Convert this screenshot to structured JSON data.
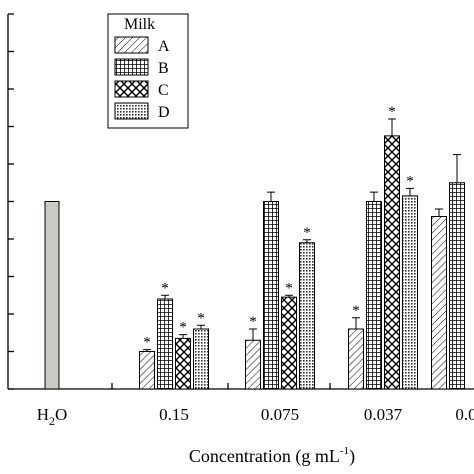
{
  "chart_data": {
    "type": "bar",
    "xlabel": "Concentration (g mL",
    "xlabel_sup": "-1",
    "xlabel_close": ")",
    "categories": [
      {
        "main": "H",
        "sub": "2",
        "rest": "O"
      },
      {
        "main": "0.15",
        "sub": "",
        "rest": ""
      },
      {
        "main": "0.075",
        "sub": "",
        "rest": ""
      },
      {
        "main": "0.037",
        "sub": "",
        "rest": ""
      },
      {
        "main": "0.0",
        "sub": "",
        "rest": ""
      }
    ],
    "ylim": [
      0,
      10
    ],
    "y_ticks": [
      0,
      1,
      2,
      3,
      4,
      5,
      6,
      7,
      8,
      9,
      10
    ],
    "legend": {
      "title": "Milk",
      "placement": "top-left"
    },
    "control": {
      "name": "",
      "value": 5.0,
      "error": 0,
      "color": "#c8cbc6"
    },
    "series": [
      {
        "name": "A",
        "pattern": "diagonal",
        "values": [
          null,
          1.0,
          1.3,
          1.6,
          4.6
        ],
        "errors": [
          0,
          0.05,
          0.3,
          0.3,
          0.2
        ],
        "significant": [
          false,
          true,
          true,
          true,
          false
        ]
      },
      {
        "name": "B",
        "pattern": "grid",
        "values": [
          null,
          2.4,
          5.0,
          5.0,
          5.5
        ],
        "errors": [
          0,
          0.1,
          0.25,
          0.25,
          0.75
        ],
        "significant": [
          false,
          true,
          false,
          false,
          false
        ]
      },
      {
        "name": "C",
        "pattern": "crosshatch",
        "values": [
          null,
          1.35,
          2.45,
          6.75,
          null
        ],
        "errors": [
          0,
          0.1,
          0.05,
          0.45,
          0
        ],
        "significant": [
          false,
          true,
          true,
          true,
          false
        ]
      },
      {
        "name": "D",
        "pattern": "dots",
        "values": [
          null,
          1.6,
          3.9,
          5.15,
          null
        ],
        "errors": [
          0,
          0.1,
          0.08,
          0.2,
          0
        ],
        "significant": [
          false,
          true,
          true,
          true,
          false
        ]
      }
    ],
    "significance_marker": "*"
  }
}
